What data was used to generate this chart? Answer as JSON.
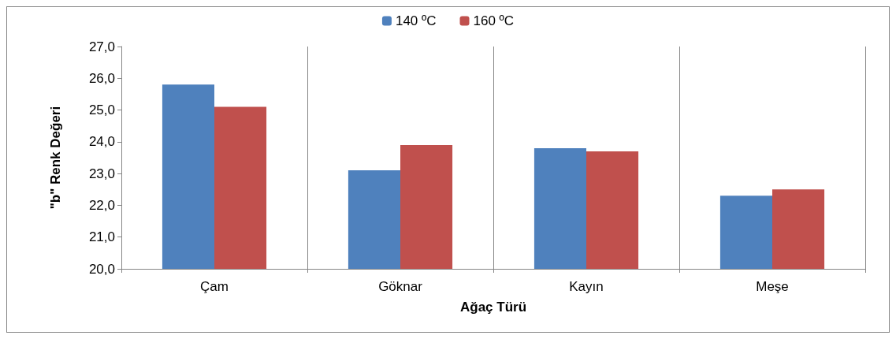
{
  "chart_data": {
    "type": "bar",
    "xlabel": "Ağaç Türü",
    "ylabel": "\"b\" Renk Değeri",
    "categories": [
      "Çam",
      "Göknar",
      "Kayın",
      "Meşe"
    ],
    "series": [
      {
        "name": "140 ºC",
        "color": "#4f81bd",
        "values": [
          25.8,
          23.1,
          23.8,
          22.3
        ]
      },
      {
        "name": "160 ºC",
        "color": "#c0504d",
        "values": [
          25.1,
          23.9,
          23.7,
          22.5
        ]
      }
    ],
    "ylim": [
      20,
      27
    ],
    "yticks": [
      {
        "value": 20,
        "label": "20,0"
      },
      {
        "value": 21,
        "label": "21,0"
      },
      {
        "value": 22,
        "label": "22,0"
      },
      {
        "value": 23,
        "label": "23,0"
      },
      {
        "value": 24,
        "label": "24,0"
      },
      {
        "value": 25,
        "label": "25,0"
      },
      {
        "value": 26,
        "label": "26,0"
      },
      {
        "value": 27,
        "label": "27,0"
      }
    ],
    "grid": "x",
    "legend": "top"
  }
}
